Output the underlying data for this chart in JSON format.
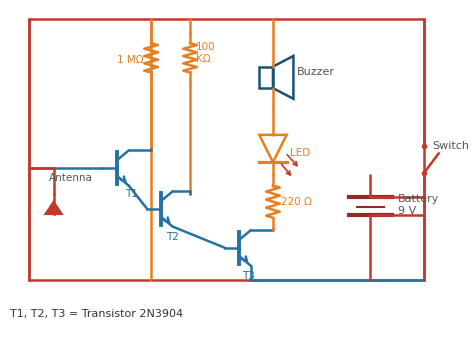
{
  "bg_color": "#ffffff",
  "wire_red": "#c0392b",
  "wire_blue": "#2471a3",
  "wire_orange": "#e67e22",
  "buzzer_color": "#1a5276",
  "battery_color": "#922b21",
  "text_color": "#555555",
  "antenna_color": "#c0392b",
  "led_color": "#e67e22",
  "led_ray_color": "#c0392b",
  "labels": {
    "antenna": "Antenna",
    "r1": "1 MΩ",
    "r2": "100\nKΩ",
    "r3": "220 Ω",
    "t1": "T1",
    "t2": "T2",
    "t3": "T3",
    "led": "LED",
    "buzzer": "Buzzer",
    "switch": "Switch",
    "battery": "Battery\n9 V",
    "footer": "T1, T2, T3 = Transistor 2N3904"
  },
  "figsize": [
    4.74,
    3.38
  ],
  "dpi": 100
}
